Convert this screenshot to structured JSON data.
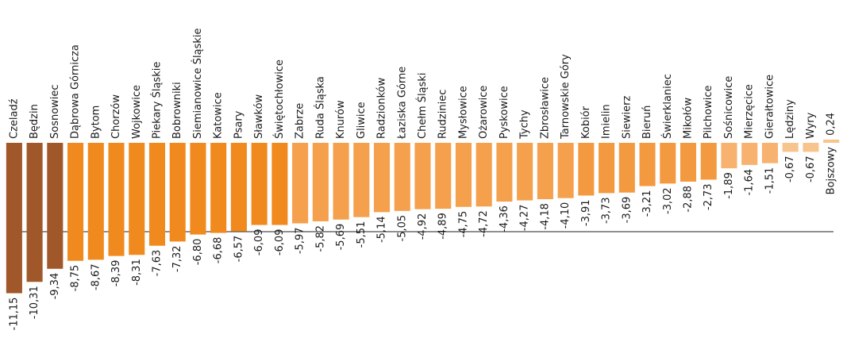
{
  "chart_data": {
    "type": "bar",
    "categories": [
      "Czeladź",
      "Będzin",
      "Sosnowiec",
      "Dąbrowa Górnicza",
      "Bytom",
      "Chorzów",
      "Wojkowice",
      "Piekary Śląskie",
      "Bobrowniki",
      "Siemianowice Śląskie",
      "Katowice",
      "Psary",
      "Sławków",
      "Świętochłowice",
      "Zabrze",
      "Ruda Śląska",
      "Knurów",
      "Gliwice",
      "Radzionków",
      "Łaziska Górne",
      "Chełm Śląski",
      "Rudziniec",
      "Mysłowice",
      "Ożarowice",
      "Pyskowice",
      "Tychy",
      "Zbrosławice",
      "Tarnowskie Góry",
      "Kobiór",
      "Imielin",
      "Siewierz",
      "Bieruń",
      "Świerklaniec",
      "Mikołów",
      "Pilchowice",
      "Sośnicowice",
      "Mierzęcice",
      "Gierałtowice",
      "Lędziny",
      "Wyry",
      "Bojszowy"
    ],
    "values": [
      -11.15,
      -10.31,
      -9.34,
      -8.75,
      -8.67,
      -8.39,
      -8.31,
      -7.63,
      -7.32,
      -6.8,
      -6.68,
      -6.57,
      -6.09,
      -6.09,
      -5.97,
      -5.82,
      -5.69,
      -5.51,
      -5.14,
      -5.05,
      -4.92,
      -4.89,
      -4.75,
      -4.72,
      -4.36,
      -4.27,
      -4.18,
      -4.1,
      -3.91,
      -3.73,
      -3.69,
      -3.21,
      -3.02,
      -2.88,
      -2.73,
      -1.89,
      -1.64,
      -1.51,
      -0.67,
      -0.67,
      0.24
    ],
    "value_labels": [
      "-11,15",
      "-10,31",
      "-9,34",
      "-8,75",
      "-8,67",
      "-8,39",
      "-8,31",
      "-7,63",
      "-7,32",
      "-6,80",
      "-6,68",
      "-6,57",
      "-6,09",
      "-6,09",
      "-5,97",
      "-5,82",
      "-5,69",
      "-5,51",
      "-5,14",
      "-5,05",
      "-4,92",
      "-4,89",
      "-4,75",
      "-4,72",
      "-4,36",
      "-4,27",
      "-4,18",
      "-4,10",
      "-3,91",
      "-3,73",
      "-3,69",
      "-3,21",
      "-3,02",
      "-2,88",
      "-2,73",
      "-1,89",
      "-1,64",
      "-1,51",
      "-0,67",
      "-0,67",
      "0,24"
    ],
    "colors": [
      "#a0582a",
      "#a0582a",
      "#a0582a",
      "#f08a1e",
      "#f08a1e",
      "#f08a1e",
      "#f08a1e",
      "#f08a1e",
      "#f08a1e",
      "#f08a1e",
      "#f08a1e",
      "#f08a1e",
      "#f08a1e",
      "#f08a1e",
      "#f4a04c",
      "#f4a04c",
      "#f4a04c",
      "#f4a04c",
      "#f4a04c",
      "#f4a04c",
      "#f4a04c",
      "#f4a04c",
      "#f4a04c",
      "#f4a04c",
      "#f4a04c",
      "#f4a04c",
      "#f4a04c",
      "#f4a04c",
      "#f39a40",
      "#f39a40",
      "#f39a40",
      "#f39a40",
      "#f39a40",
      "#f39a40",
      "#f39a40",
      "#f6b26e",
      "#f6b26e",
      "#f6b26e",
      "#f8c48e",
      "#f8c48e",
      "#f8c48e"
    ],
    "ylim": [
      -12,
      1
    ]
  }
}
